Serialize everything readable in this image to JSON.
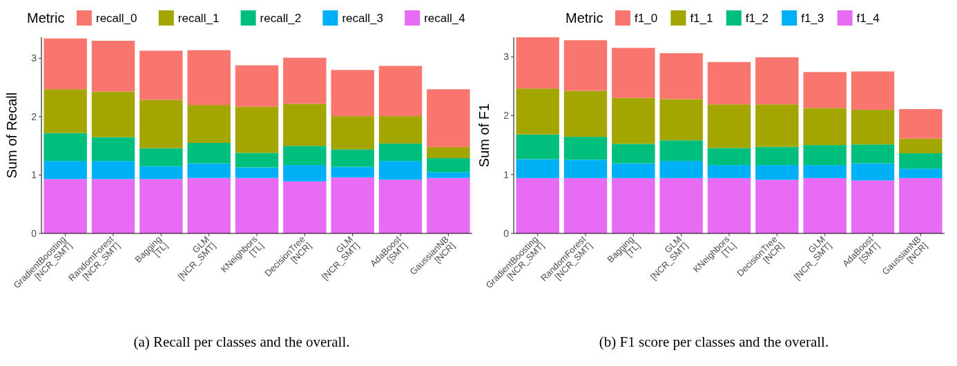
{
  "chart_data": [
    {
      "type": "bar",
      "title": "(a) Recall per classes and the overall.",
      "ylabel": "Sum of Recall",
      "legend_title": "Metric",
      "legend": "top",
      "stacked": true,
      "grid": false,
      "categories": [
        "GradientBoosting\n[NCR_SMT]",
        "RandomForest\n[NCR_SMT]",
        "Bagging\n[TL]",
        "GLM\n[NCR_SMT]",
        "KNeighbors\n[TL]",
        "DecisionTree\n[NCR]",
        "GLM\n[NCR_SMT]",
        "AdaBoost\n[SMT]",
        "GaussianNB\n[NCR]"
      ],
      "ylim": [
        0,
        3.36
      ],
      "yticks": [
        0,
        1,
        2,
        3
      ],
      "series": [
        {
          "name": "recall_4",
          "color": "#e76bf3",
          "values": [
            0.93,
            0.93,
            0.93,
            0.95,
            0.95,
            0.89,
            0.96,
            0.92,
            0.95
          ]
        },
        {
          "name": "recall_3",
          "color": "#00b0f6",
          "values": [
            0.31,
            0.31,
            0.22,
            0.25,
            0.18,
            0.28,
            0.18,
            0.32,
            0.1
          ]
        },
        {
          "name": "recall_2",
          "color": "#00bf7d",
          "values": [
            0.48,
            0.41,
            0.31,
            0.35,
            0.25,
            0.33,
            0.3,
            0.3,
            0.24
          ]
        },
        {
          "name": "recall_1",
          "color": "#a3a500",
          "values": [
            0.75,
            0.78,
            0.83,
            0.65,
            0.79,
            0.72,
            0.57,
            0.47,
            0.19
          ]
        },
        {
          "name": "recall_0",
          "color": "#f8766d",
          "values": [
            0.87,
            0.87,
            0.84,
            0.94,
            0.71,
            0.79,
            0.79,
            0.86,
            0.99
          ]
        }
      ]
    },
    {
      "type": "bar",
      "title": "(b) F1 score per classes and the overall.",
      "ylabel": "Sum of F1",
      "legend_title": "Metric",
      "legend": "top",
      "stacked": true,
      "grid": false,
      "categories": [
        "GradientBoosting\n[NCR_SMT]",
        "RandomForest\n[NCR_SMT]",
        "Bagging\n[TL]",
        "GLM\n[NCR_SMT]",
        "KNeighbors\n[TL]",
        "DecisionTree\n[NCR]",
        "GLM\n[NCR_SMT]",
        "AdaBoost\n[SMT]",
        "GaussianNB\n[NCR]"
      ],
      "ylim": [
        0,
        3.33
      ],
      "yticks": [
        0,
        1,
        2,
        3
      ],
      "series": [
        {
          "name": "f1_4",
          "color": "#e76bf3",
          "values": [
            0.94,
            0.94,
            0.94,
            0.94,
            0.94,
            0.91,
            0.94,
            0.9,
            0.94
          ]
        },
        {
          "name": "f1_3",
          "color": "#00b0f6",
          "values": [
            0.32,
            0.31,
            0.25,
            0.29,
            0.22,
            0.25,
            0.22,
            0.29,
            0.16
          ]
        },
        {
          "name": "f1_2",
          "color": "#00bf7d",
          "values": [
            0.42,
            0.39,
            0.33,
            0.35,
            0.29,
            0.31,
            0.34,
            0.32,
            0.26
          ]
        },
        {
          "name": "f1_1",
          "color": "#a3a500",
          "values": [
            0.78,
            0.78,
            0.78,
            0.7,
            0.74,
            0.72,
            0.63,
            0.59,
            0.25
          ]
        },
        {
          "name": "f1_0",
          "color": "#f8766d",
          "values": [
            0.87,
            0.86,
            0.85,
            0.78,
            0.72,
            0.8,
            0.61,
            0.65,
            0.5
          ]
        }
      ]
    }
  ]
}
